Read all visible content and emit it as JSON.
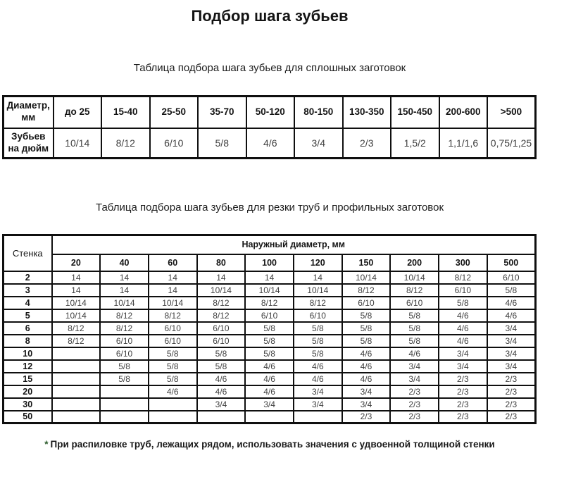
{
  "page": {
    "title": "Подбор шага зубьев"
  },
  "solid_table": {
    "caption": "Таблица подбора шага зубьев для сплошных заготовок",
    "row_headers": [
      "Диаметр, мм",
      "Зубьев на дюйм"
    ],
    "columns": [
      "до 25",
      "15-40",
      "25-50",
      "35-70",
      "50-120",
      "80-150",
      "130-350",
      "150-450",
      "200-600",
      ">500"
    ],
    "values": [
      "10/14",
      "8/12",
      "6/10",
      "5/8",
      "4/6",
      "3/4",
      "2/3",
      "1,5/2",
      "1,1/1,6",
      "0,75/1,25"
    ]
  },
  "pipe_table": {
    "caption": "Таблица подбора шага зубьев для резки труб и профильных заготовок",
    "corner_header": "Стенка",
    "group_header": "Наружный диаметр, мм",
    "columns": [
      "20",
      "40",
      "60",
      "80",
      "100",
      "120",
      "150",
      "200",
      "300",
      "500"
    ],
    "rows": [
      {
        "wall": "2",
        "values": [
          "14",
          "14",
          "14",
          "14",
          "14",
          "14",
          "10/14",
          "10/14",
          "8/12",
          "6/10"
        ]
      },
      {
        "wall": "3",
        "values": [
          "14",
          "14",
          "14",
          "10/14",
          "10/14",
          "10/14",
          "8/12",
          "8/12",
          "6/10",
          "5/8"
        ]
      },
      {
        "wall": "4",
        "values": [
          "10/14",
          "10/14",
          "10/14",
          "8/12",
          "8/12",
          "8/12",
          "6/10",
          "6/10",
          "5/8",
          "4/6"
        ]
      },
      {
        "wall": "5",
        "values": [
          "10/14",
          "8/12",
          "8/12",
          "8/12",
          "6/10",
          "6/10",
          "5/8",
          "5/8",
          "4/6",
          "4/6"
        ]
      },
      {
        "wall": "6",
        "values": [
          "8/12",
          "8/12",
          "6/10",
          "6/10",
          "5/8",
          "5/8",
          "5/8",
          "5/8",
          "4/6",
          "3/4"
        ]
      },
      {
        "wall": "8",
        "values": [
          "8/12",
          "6/10",
          "6/10",
          "6/10",
          "5/8",
          "5/8",
          "5/8",
          "5/8",
          "4/6",
          "3/4"
        ]
      },
      {
        "wall": "10",
        "values": [
          "",
          "6/10",
          "5/8",
          "5/8",
          "5/8",
          "5/8",
          "4/6",
          "4/6",
          "3/4",
          "3/4"
        ]
      },
      {
        "wall": "12",
        "values": [
          "",
          "5/8",
          "5/8",
          "5/8",
          "4/6",
          "4/6",
          "4/6",
          "3/4",
          "3/4",
          "3/4"
        ]
      },
      {
        "wall": "15",
        "values": [
          "",
          "5/8",
          "5/8",
          "4/6",
          "4/6",
          "4/6",
          "4/6",
          "3/4",
          "2/3",
          "2/3"
        ]
      },
      {
        "wall": "20",
        "values": [
          "",
          "",
          "4/6",
          "4/6",
          "4/6",
          "3/4",
          "3/4",
          "2/3",
          "2/3",
          "2/3"
        ]
      },
      {
        "wall": "30",
        "values": [
          "",
          "",
          "",
          "3/4",
          "3/4",
          "3/4",
          "3/4",
          "2/3",
          "2/3",
          "2/3"
        ]
      },
      {
        "wall": "50",
        "values": [
          "",
          "",
          "",
          "",
          "",
          "",
          "2/3",
          "2/3",
          "2/3",
          "2/3"
        ]
      }
    ]
  },
  "footnote": {
    "marker": "*",
    "text": "При распиловке труб, лежащих рядом, использовать значения с удвоенной толщиной стенки"
  }
}
